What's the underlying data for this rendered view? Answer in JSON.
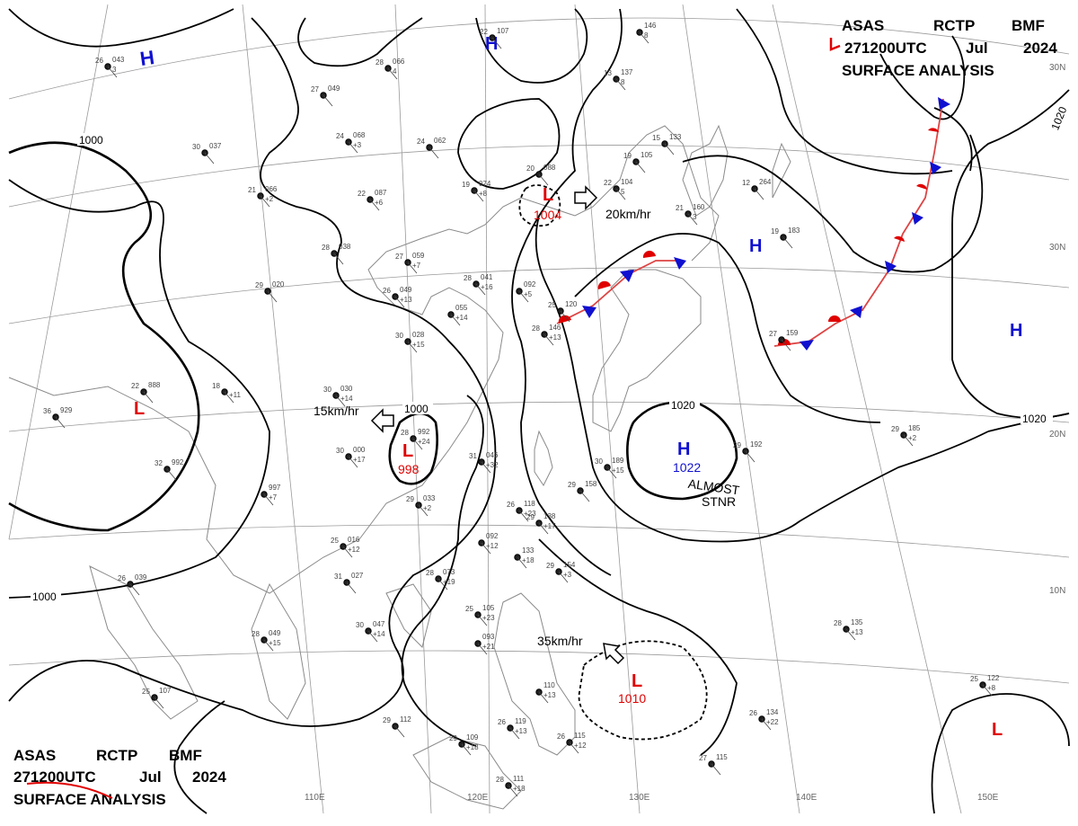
{
  "header_top": {
    "line1": [
      "ASAS",
      "RCTP",
      "BMF"
    ],
    "line2": [
      "271200UTC",
      "Jul",
      "2024"
    ],
    "line3": "SURFACE ANALYSIS"
  },
  "header_bottom": {
    "line1": [
      "ASAS",
      "RCTP",
      "BMF"
    ],
    "line2": [
      "271200UTC",
      "Jul",
      "2024"
    ],
    "line3": "SURFACE ANALYSIS"
  },
  "colors": {
    "low": "#e00000",
    "high": "#1010d0",
    "isobar": "#000000",
    "coast": "#8a8a8a",
    "grid": "#9a9a9a"
  },
  "pressure_centers": [
    {
      "id": "high-nw",
      "type": "H",
      "value": ""
    },
    {
      "id": "high-mongolia",
      "type": "H",
      "value": ""
    },
    {
      "id": "high-okhotsk",
      "type": "H",
      "value": ""
    },
    {
      "id": "high-pacific",
      "type": "H",
      "value": ""
    },
    {
      "id": "high-ecs",
      "type": "H",
      "value": "1022"
    },
    {
      "id": "low-sea-japan",
      "type": "L",
      "value": "1004"
    },
    {
      "id": "low-tibet",
      "type": "L",
      "value": ""
    },
    {
      "id": "low-china",
      "type": "L",
      "value": "998"
    },
    {
      "id": "low-philippine",
      "type": "L",
      "value": "1010"
    },
    {
      "id": "low-pacific-se",
      "type": "L",
      "value": ""
    }
  ],
  "isobar_labels": [
    "1000",
    "1000",
    "1000",
    "1020",
    "1020",
    "1020"
  ],
  "motion": [
    {
      "id": "motion-20",
      "text": "20km/hr"
    },
    {
      "id": "motion-15",
      "text": "15km/hr"
    },
    {
      "id": "motion-35",
      "text": "35km/hr"
    }
  ],
  "annotations": {
    "almost": "ALMOST",
    "stnr": "STNR"
  },
  "lat_labels": [
    "30N",
    "20N",
    "10N"
  ],
  "lon_labels": [
    "110E",
    "120E",
    "130E",
    "140E",
    "150E"
  ],
  "stations": [
    {
      "id": "s1",
      "t": "26",
      "p": "043",
      "x": "3"
    },
    {
      "id": "s2",
      "t": "28",
      "p": "066",
      "x": "4"
    },
    {
      "id": "s3",
      "t": "22",
      "p": "107",
      "x": ""
    },
    {
      "id": "s4",
      "t": "",
      "p": "146",
      "x": "8"
    },
    {
      "id": "s5",
      "t": "13",
      "p": "137",
      "x": "8"
    },
    {
      "id": "s6",
      "t": "27",
      "p": "049",
      "x": ""
    },
    {
      "id": "s7",
      "t": "24",
      "p": "068",
      "x": "+3"
    },
    {
      "id": "s8",
      "t": "24",
      "p": "062",
      "x": ""
    },
    {
      "id": "s9",
      "t": "30",
      "p": "037",
      "x": ""
    },
    {
      "id": "s10",
      "t": "21",
      "p": "066",
      "x": "+2"
    },
    {
      "id": "s11",
      "t": "22",
      "p": "087",
      "x": "+6"
    },
    {
      "id": "s12",
      "t": "19",
      "p": "074",
      "x": "+8"
    },
    {
      "id": "s13",
      "t": "20",
      "p": "088",
      "x": ""
    },
    {
      "id": "s14",
      "t": "22",
      "p": "104",
      "x": "5"
    },
    {
      "id": "s15",
      "t": "15",
      "p": "133",
      "x": ""
    },
    {
      "id": "s16",
      "t": "19",
      "p": "105",
      "x": ""
    },
    {
      "id": "s17",
      "t": "21",
      "p": "160",
      "x": "3"
    },
    {
      "id": "s18",
      "t": "12",
      "p": "264",
      "x": ""
    },
    {
      "id": "s19",
      "t": "19",
      "p": "183",
      "x": ""
    },
    {
      "id": "s20",
      "t": "28",
      "p": "038",
      "x": ""
    },
    {
      "id": "s21",
      "t": "27",
      "p": "059",
      "x": "+7"
    },
    {
      "id": "s22",
      "t": "29",
      "p": "020",
      "x": ""
    },
    {
      "id": "s23",
      "t": "26",
      "p": "049",
      "x": "+13"
    },
    {
      "id": "s24",
      "t": "28",
      "p": "041",
      "x": "+16"
    },
    {
      "id": "s25",
      "t": "",
      "p": "092",
      "x": "+5"
    },
    {
      "id": "s26",
      "t": "",
      "p": "055",
      "x": "+14"
    },
    {
      "id": "s27",
      "t": "25",
      "p": "120",
      "x": ""
    },
    {
      "id": "s28",
      "t": "28",
      "p": "146",
      "x": "+13"
    },
    {
      "id": "s29",
      "t": "30",
      "p": "028",
      "x": "+15"
    },
    {
      "id": "s30",
      "t": "22",
      "p": "888",
      "x": ""
    },
    {
      "id": "s31",
      "t": "36",
      "p": "929",
      "x": ""
    },
    {
      "id": "s32",
      "t": "18",
      "p": "",
      "x": "+11"
    },
    {
      "id": "s33",
      "t": "30",
      "p": "030",
      "x": "+14"
    },
    {
      "id": "s34",
      "t": "28",
      "p": "992",
      "x": "+24"
    },
    {
      "id": "s35",
      "t": "30",
      "p": "000",
      "x": "+17"
    },
    {
      "id": "s36",
      "t": "31",
      "p": "046",
      "x": "+32"
    },
    {
      "id": "s37",
      "t": "32",
      "p": "992",
      "x": ""
    },
    {
      "id": "s38",
      "t": "",
      "p": "997",
      "x": "+7"
    },
    {
      "id": "s39",
      "t": "29",
      "p": "033",
      "x": "+2"
    },
    {
      "id": "s40",
      "t": "26",
      "p": "118",
      "x": "+23"
    },
    {
      "id": "s41",
      "t": "29",
      "p": "138",
      "x": "+17"
    },
    {
      "id": "s42",
      "t": "30",
      "p": "189",
      "x": "+15"
    },
    {
      "id": "s43",
      "t": "29",
      "p": "158",
      "x": ""
    },
    {
      "id": "s44",
      "t": "29",
      "p": "192",
      "x": ""
    },
    {
      "id": "s45",
      "t": "29",
      "p": "185",
      "x": "+2"
    },
    {
      "id": "s46",
      "t": "27",
      "p": "159",
      "x": ""
    },
    {
      "id": "s47",
      "t": "26",
      "p": "039",
      "x": ""
    },
    {
      "id": "s48",
      "t": "28",
      "p": "073",
      "x": "+19"
    },
    {
      "id": "s49",
      "t": "29",
      "p": "154",
      "x": "+3"
    },
    {
      "id": "s50",
      "t": "30",
      "p": "047",
      "x": "+14"
    },
    {
      "id": "s51",
      "t": "28",
      "p": "049",
      "x": "+15"
    },
    {
      "id": "s52",
      "t": "25",
      "p": "105",
      "x": "+23"
    },
    {
      "id": "s53",
      "t": "",
      "p": "093",
      "x": "+21"
    },
    {
      "id": "s54",
      "t": "",
      "p": "110",
      "x": "+13"
    },
    {
      "id": "s55",
      "t": "28",
      "p": "135",
      "x": "+13"
    },
    {
      "id": "s56",
      "t": "25",
      "p": "122",
      "x": "+8"
    },
    {
      "id": "s57",
      "t": "25",
      "p": "107",
      "x": ""
    },
    {
      "id": "s58",
      "t": "29",
      "p": "112",
      "x": ""
    },
    {
      "id": "s59",
      "t": "29",
      "p": "109",
      "x": "+18"
    },
    {
      "id": "s60",
      "t": "26",
      "p": "119",
      "x": "+13"
    },
    {
      "id": "s61",
      "t": "26",
      "p": "115",
      "x": "+12"
    },
    {
      "id": "s62",
      "t": "26",
      "p": "134",
      "x": "+22"
    },
    {
      "id": "s63",
      "t": "27",
      "p": "115",
      "x": ""
    },
    {
      "id": "s64",
      "t": "28",
      "p": "111",
      "x": "+18"
    },
    {
      "id": "s65",
      "t": "31",
      "p": "027",
      "x": ""
    },
    {
      "id": "s66",
      "t": "25",
      "p": "016",
      "x": "+12"
    },
    {
      "id": "s67",
      "t": "",
      "p": "092",
      "x": "+12"
    },
    {
      "id": "s68",
      "t": "",
      "p": "133",
      "x": "+18"
    }
  ]
}
